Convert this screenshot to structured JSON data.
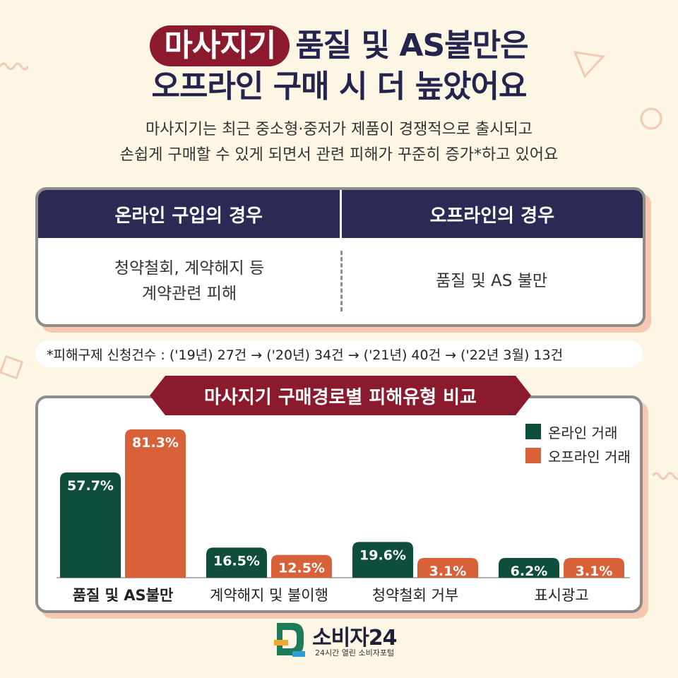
{
  "header": {
    "title_highlight": "마사지기",
    "title_rest": "품질 및 AS불만은",
    "title_line2": "오프라인 구매 시 더 높았어요",
    "subtitle_line1": "마사지기는 최근 중소형·중저가 제품이 경쟁적으로 출시되고",
    "subtitle_line2": "손쉽게 구매할 수 있게 되면서 관련 피해가 꾸준히 증가*하고 있어요"
  },
  "comparison": {
    "online_header": "온라인 구입의 경우",
    "offline_header": "오프라인의 경우",
    "online_line1": "청약철회, 계약해지 등",
    "online_line2": "계약관련 피해",
    "offline_text": "품질 및 AS 불만"
  },
  "note": "*피해구제 신청건수 : ('19년) 27건 → ('20년) 34건 → ('21년) 40건 → ('22년 3월) 13건",
  "colors": {
    "online": "#0f4d3d",
    "offline": "#d9613a",
    "accent": "#8b1a2e",
    "navy": "#2a2a54"
  },
  "chart_data": {
    "type": "bar",
    "title": "마사지기 구매경로별 피해유형 비교",
    "categories": [
      "품질 및 AS불만",
      "계약해지 및 불이행",
      "청약철회 거부",
      "표시광고"
    ],
    "series": [
      {
        "name": "온라인 거래",
        "values": [
          57.7,
          16.5,
          19.6,
          6.2
        ],
        "labels": [
          "57.7%",
          "16.5%",
          "19.6%",
          "6.2%"
        ]
      },
      {
        "name": "오프라인 거래",
        "values": [
          81.3,
          12.5,
          3.1,
          3.1
        ],
        "labels": [
          "81.3%",
          "12.5%",
          "3.1%",
          "3.1%"
        ]
      }
    ],
    "ylim": [
      0,
      81.3
    ],
    "legend": "top-right",
    "grid": false
  },
  "logo": {
    "name": "소비자24",
    "tagline": "24시간 열린 소비자포털"
  }
}
